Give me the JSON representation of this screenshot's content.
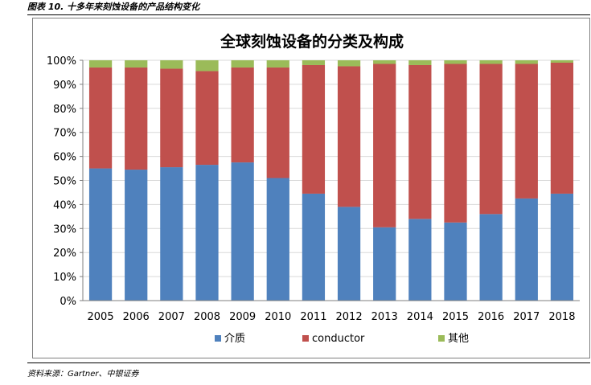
{
  "figure": {
    "caption": "图表 10. 十多年来刻蚀设备的产品结构变化",
    "source": "资料来源：Gartner、中银证券"
  },
  "chart_data": {
    "type": "bar",
    "stacked": true,
    "title": "全球刻蚀设备的分类及构成",
    "xlabel": "",
    "ylabel": "",
    "ylim": [
      0,
      100
    ],
    "yticks": [
      "0%",
      "10%",
      "20%",
      "30%",
      "40%",
      "50%",
      "60%",
      "70%",
      "80%",
      "90%",
      "100%"
    ],
    "categories": [
      "2005",
      "2006",
      "2007",
      "2008",
      "2009",
      "2010",
      "2011",
      "2012",
      "2013",
      "2014",
      "2015",
      "2016",
      "2017",
      "2018"
    ],
    "series": [
      {
        "name": "介质",
        "color": "#4f81bd",
        "values": [
          55,
          54.5,
          55.5,
          56.5,
          57.5,
          51,
          44.5,
          39,
          30.5,
          34,
          32.5,
          36,
          42.5,
          44.5
        ]
      },
      {
        "name": "conductor",
        "color": "#c0504d",
        "values": [
          42,
          42.5,
          41,
          39,
          39.5,
          46,
          53.5,
          58.5,
          68,
          64,
          66,
          62.5,
          56,
          54.5
        ]
      },
      {
        "name": "其他",
        "color": "#9bbb59",
        "values": [
          3,
          3,
          3.5,
          4.5,
          3,
          3,
          2,
          2.5,
          1.5,
          2,
          1.5,
          1.5,
          1.5,
          1
        ]
      }
    ],
    "legend_position": "bottom",
    "grid": true
  }
}
